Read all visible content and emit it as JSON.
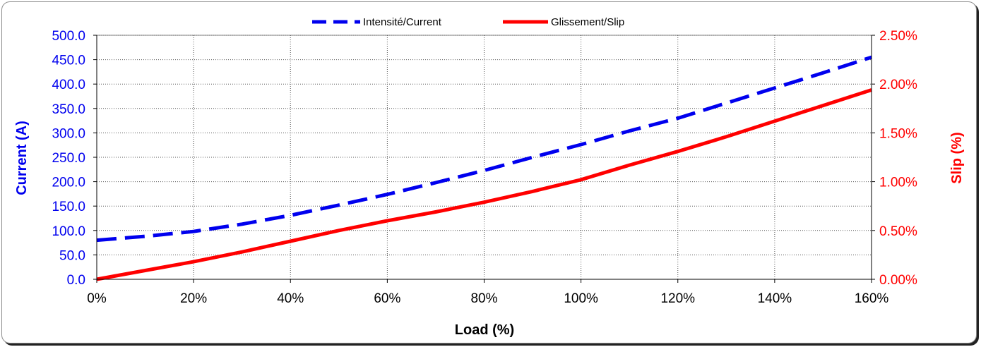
{
  "chart_data": {
    "type": "line",
    "xlabel": "Load (%)",
    "ylabel_left": "Current (A)",
    "ylabel_right": "Slip (%)",
    "x_ticks": [
      "0%",
      "20%",
      "40%",
      "60%",
      "80%",
      "100%",
      "120%",
      "140%",
      "160%"
    ],
    "y_left_ticks": [
      "0.0",
      "50.0",
      "100.0",
      "150.0",
      "200.0",
      "250.0",
      "300.0",
      "350.0",
      "400.0",
      "450.0",
      "500.0"
    ],
    "y_right_ticks": [
      "0.00%",
      "0.50%",
      "1.00%",
      "1.50%",
      "2.00%",
      "2.50%"
    ],
    "xlim": [
      0,
      160
    ],
    "ylim_left": [
      0,
      500
    ],
    "ylim_right": [
      0,
      2.5
    ],
    "grid": true,
    "legend_position": "top",
    "series": [
      {
        "name": "Intensité/Current",
        "axis": "left",
        "style": "dashed",
        "color": "#0000ee",
        "x": [
          0,
          10,
          20,
          30,
          40,
          50,
          60,
          70,
          80,
          90,
          100,
          110,
          120,
          130,
          140,
          150,
          160
        ],
        "y": [
          80,
          88,
          98,
          113,
          131,
          152,
          174,
          198,
          223,
          250,
          276,
          304,
          330,
          361,
          392,
          423,
          455
        ]
      },
      {
        "name": "Glissement/Slip",
        "axis": "right",
        "style": "solid",
        "color": "#ff0000",
        "x": [
          0,
          10,
          20,
          30,
          40,
          50,
          60,
          70,
          80,
          90,
          100,
          110,
          120,
          130,
          140,
          150,
          160
        ],
        "y": [
          0,
          0.09,
          0.18,
          0.28,
          0.39,
          0.5,
          0.6,
          0.69,
          0.79,
          0.9,
          1.02,
          1.17,
          1.31,
          1.46,
          1.62,
          1.78,
          1.94
        ]
      }
    ]
  }
}
